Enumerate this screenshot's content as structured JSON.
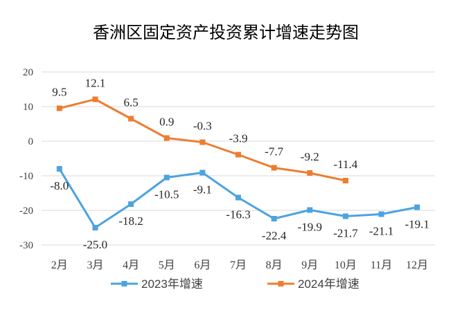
{
  "chart_data": {
    "type": "line",
    "title": "香洲区固定资产投资累计增速走势图",
    "categories": [
      "2月",
      "3月",
      "4月",
      "5月",
      "6月",
      "7月",
      "8月",
      "9月",
      "10月",
      "11月",
      "12月"
    ],
    "ylim": [
      -30,
      20
    ],
    "yticks": [
      20,
      10,
      0,
      -10,
      -20,
      -30
    ],
    "grid": true,
    "legend": "bottom",
    "series": [
      {
        "name": "2023年增速",
        "color": "#4BA3E0",
        "values": [
          -8.0,
          -25.0,
          -18.2,
          -10.5,
          -9.1,
          -16.3,
          -22.4,
          -19.9,
          -21.7,
          -21.1,
          -19.1
        ],
        "labels": [
          "-8.0",
          "-25.0",
          "-18.2",
          "-10.5",
          "-9.1",
          "-16.3",
          "-22.4",
          "-19.9",
          "-21.7",
          "-21.1",
          "-19.1"
        ]
      },
      {
        "name": "2024年增速",
        "color": "#ED7D31",
        "values": [
          9.5,
          12.1,
          6.5,
          0.9,
          -0.3,
          -3.9,
          -7.7,
          -9.2,
          -11.4,
          null,
          null
        ],
        "labels": [
          "9.5",
          "12.1",
          "6.5",
          "0.9",
          "-0.3",
          "-3.9",
          "-7.7",
          "-9.2",
          "-11.4",
          null,
          null
        ]
      }
    ]
  }
}
